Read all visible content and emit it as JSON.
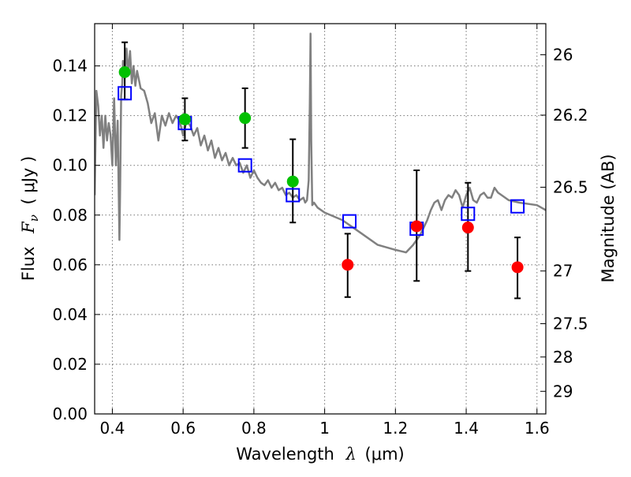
{
  "chart_data": {
    "type": "scatter",
    "title": "",
    "xlabel": "Wavelength",
    "xlabel_symbol": "λ",
    "xlabel_unit": "(μm)",
    "ylabel": "Flux",
    "ylabel_symbol": "F",
    "ylabel_subscript": "ν",
    "ylabel_unit": "( μJy )",
    "y2label": "Magnitude (AB)",
    "xlim": [
      0.35,
      1.625
    ],
    "ylim": [
      0.0,
      0.157
    ],
    "xticks": [
      0.4,
      0.6,
      0.8,
      1.0,
      1.2,
      1.4,
      1.6
    ],
    "xtick_labels": [
      "0.4",
      "0.6",
      "0.8",
      "1",
      "1.2",
      "1.4",
      "1.6"
    ],
    "yticks": [
      0.0,
      0.02,
      0.04,
      0.06,
      0.08,
      0.1,
      0.12,
      0.14
    ],
    "ytick_labels": [
      "0.00",
      "0.02",
      "0.04",
      "0.06",
      "0.08",
      "0.10",
      "0.12",
      "0.14"
    ],
    "y2ticks": [
      {
        "label": "26",
        "flux": 0.1445
      },
      {
        "label": "26.2",
        "flux": 0.1202
      },
      {
        "label": "26.5",
        "flux": 0.0912
      },
      {
        "label": "27",
        "flux": 0.0575
      },
      {
        "label": "27.5",
        "flux": 0.0363
      },
      {
        "label": "28",
        "flux": 0.0229
      },
      {
        "label": "29",
        "flux": 0.0091
      }
    ],
    "grid": true,
    "series": [
      {
        "kind": "line",
        "color": "#808080",
        "x": [
          0.35,
          0.355,
          0.36,
          0.365,
          0.37,
          0.375,
          0.38,
          0.385,
          0.39,
          0.395,
          0.4,
          0.405,
          0.41,
          0.415,
          0.42,
          0.422,
          0.425,
          0.428,
          0.43,
          0.435,
          0.44,
          0.445,
          0.45,
          0.455,
          0.46,
          0.465,
          0.47,
          0.48,
          0.49,
          0.5,
          0.51,
          0.52,
          0.53,
          0.54,
          0.55,
          0.56,
          0.57,
          0.58,
          0.59,
          0.6,
          0.61,
          0.62,
          0.63,
          0.64,
          0.65,
          0.66,
          0.67,
          0.68,
          0.69,
          0.7,
          0.71,
          0.72,
          0.73,
          0.74,
          0.75,
          0.76,
          0.77,
          0.78,
          0.79,
          0.8,
          0.81,
          0.82,
          0.83,
          0.84,
          0.85,
          0.86,
          0.87,
          0.88,
          0.89,
          0.9,
          0.91,
          0.92,
          0.93,
          0.94,
          0.945,
          0.95,
          0.955,
          0.958,
          0.96,
          0.962,
          0.965,
          0.97,
          0.98,
          1.0,
          1.05,
          1.1,
          1.15,
          1.2,
          1.23,
          1.25,
          1.27,
          1.29,
          1.3,
          1.31,
          1.32,
          1.33,
          1.34,
          1.35,
          1.36,
          1.37,
          1.38,
          1.39,
          1.4,
          1.41,
          1.42,
          1.43,
          1.44,
          1.45,
          1.46,
          1.47,
          1.48,
          1.49,
          1.5,
          1.52,
          1.55,
          1.6,
          1.625
        ],
        "y": [
          0.088,
          0.13,
          0.124,
          0.112,
          0.12,
          0.107,
          0.12,
          0.11,
          0.117,
          0.112,
          0.1,
          0.127,
          0.1,
          0.118,
          0.07,
          0.09,
          0.128,
          0.133,
          0.142,
          0.135,
          0.147,
          0.137,
          0.146,
          0.133,
          0.14,
          0.132,
          0.138,
          0.131,
          0.13,
          0.125,
          0.117,
          0.121,
          0.11,
          0.12,
          0.116,
          0.121,
          0.117,
          0.12,
          0.118,
          0.112,
          0.118,
          0.116,
          0.112,
          0.115,
          0.108,
          0.112,
          0.106,
          0.11,
          0.103,
          0.107,
          0.102,
          0.105,
          0.1,
          0.103,
          0.1,
          0.101,
          0.097,
          0.1,
          0.095,
          0.098,
          0.095,
          0.093,
          0.092,
          0.094,
          0.091,
          0.093,
          0.09,
          0.091,
          0.088,
          0.089,
          0.087,
          0.088,
          0.086,
          0.087,
          0.085,
          0.086,
          0.094,
          0.125,
          0.153,
          0.11,
          0.084,
          0.085,
          0.083,
          0.081,
          0.078,
          0.073,
          0.068,
          0.066,
          0.065,
          0.068,
          0.072,
          0.078,
          0.082,
          0.085,
          0.086,
          0.082,
          0.086,
          0.088,
          0.087,
          0.09,
          0.088,
          0.083,
          0.088,
          0.091,
          0.086,
          0.085,
          0.088,
          0.089,
          0.087,
          0.087,
          0.091,
          0.089,
          0.088,
          0.086,
          0.085,
          0.084,
          0.082
        ]
      },
      {
        "kind": "model_squares",
        "color": "#0000ff",
        "x": [
          0.435,
          0.605,
          0.775,
          0.91,
          1.07,
          1.26,
          1.405,
          1.545
        ],
        "y": [
          0.129,
          0.117,
          0.1,
          0.088,
          0.0775,
          0.0745,
          0.0805,
          0.0835
        ]
      },
      {
        "kind": "points_with_errors",
        "color": "#00c000",
        "x": [
          0.435,
          0.605,
          0.775,
          0.91
        ],
        "y": [
          0.1375,
          0.1185,
          0.119,
          0.0935
        ],
        "err_low": [
          0.1265,
          0.11,
          0.107,
          0.077
        ],
        "err_high": [
          0.1495,
          0.127,
          0.131,
          0.1105
        ]
      },
      {
        "kind": "points_with_errors",
        "color": "#ff0000",
        "x": [
          1.065,
          1.26,
          1.405,
          1.545
        ],
        "y": [
          0.06,
          0.0755,
          0.075,
          0.059
        ],
        "err_low": [
          0.047,
          0.0535,
          0.0575,
          0.0465
        ],
        "err_high": [
          0.0725,
          0.098,
          0.093,
          0.071
        ]
      }
    ]
  }
}
